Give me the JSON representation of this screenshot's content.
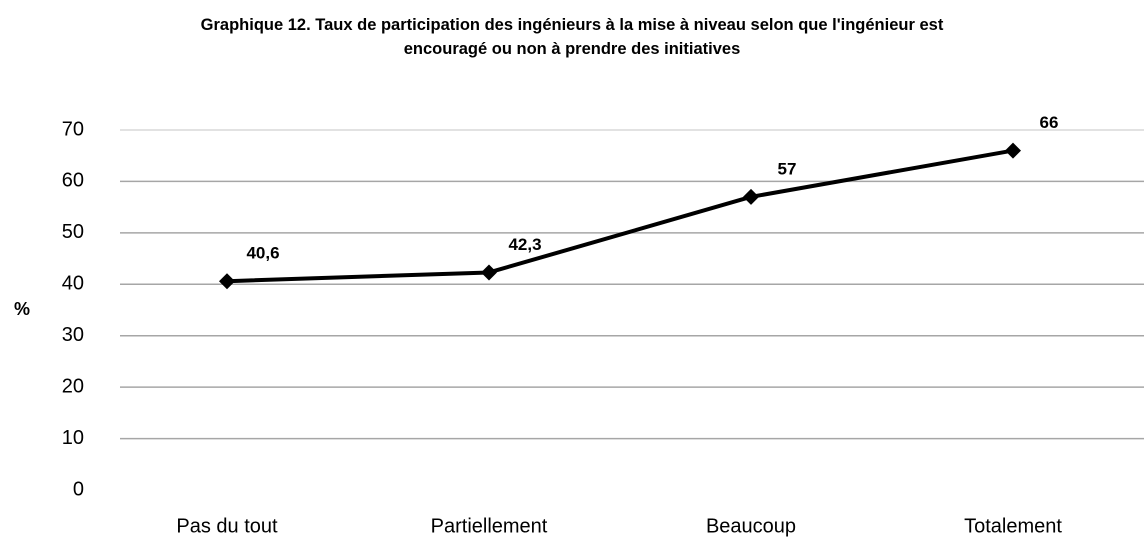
{
  "chart_data": {
    "type": "line",
    "title": "Graphique 12. Taux de participation des ingénieurs à la mise à niveau selon que l'ingénieur est encouragé ou non à prendre des initiatives",
    "y_label": "%",
    "categories": [
      "Pas du tout",
      "Partiellement",
      "Beaucoup",
      "Totalement"
    ],
    "series": [
      {
        "color": "#000000",
        "values": [
          40.6,
          42.3,
          57,
          66
        ],
        "value_labels": [
          "40,6",
          "42,3",
          "57",
          "66"
        ]
      }
    ],
    "ylim": [
      0,
      70
    ],
    "yticks": [
      0,
      10,
      20,
      30,
      40,
      50,
      60,
      70
    ],
    "grid": true,
    "marker": "diamond"
  }
}
